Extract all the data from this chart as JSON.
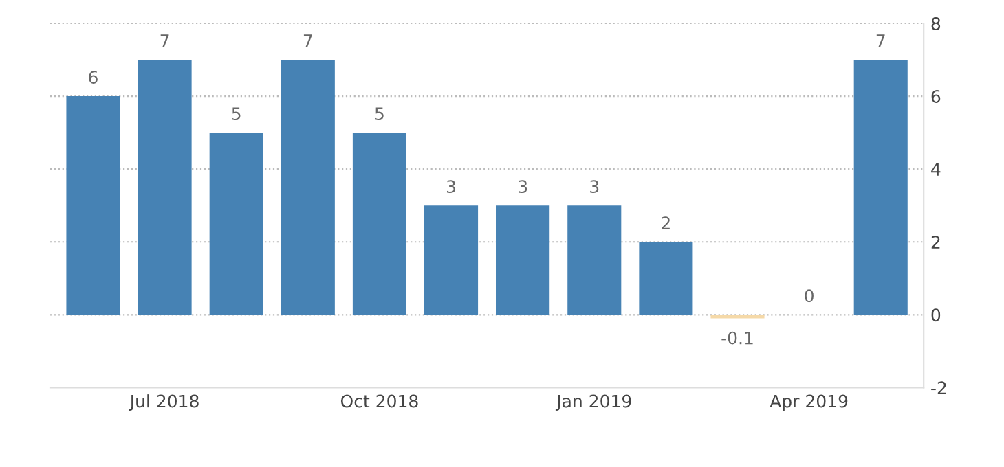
{
  "chart_data": {
    "type": "bar",
    "categories": [
      null,
      "Jul 2018",
      null,
      null,
      "Oct 2018",
      null,
      null,
      "Jan 2019",
      null,
      null,
      "Apr 2019",
      null
    ],
    "values": [
      6,
      7,
      5,
      7,
      5,
      3,
      3,
      3,
      2,
      -0.1,
      0,
      7
    ],
    "colors": [
      "#4682b4",
      "#4682b4",
      "#4682b4",
      "#4682b4",
      "#4682b4",
      "#4682b4",
      "#4682b4",
      "#4682b4",
      "#4682b4",
      "#f5d9a8",
      "#4682b4",
      "#4682b4"
    ],
    "ylim": [
      -2,
      8
    ],
    "yticks": [
      -2,
      0,
      2,
      4,
      6,
      8
    ],
    "grid": "y",
    "data_labels": true,
    "legend": false
  }
}
